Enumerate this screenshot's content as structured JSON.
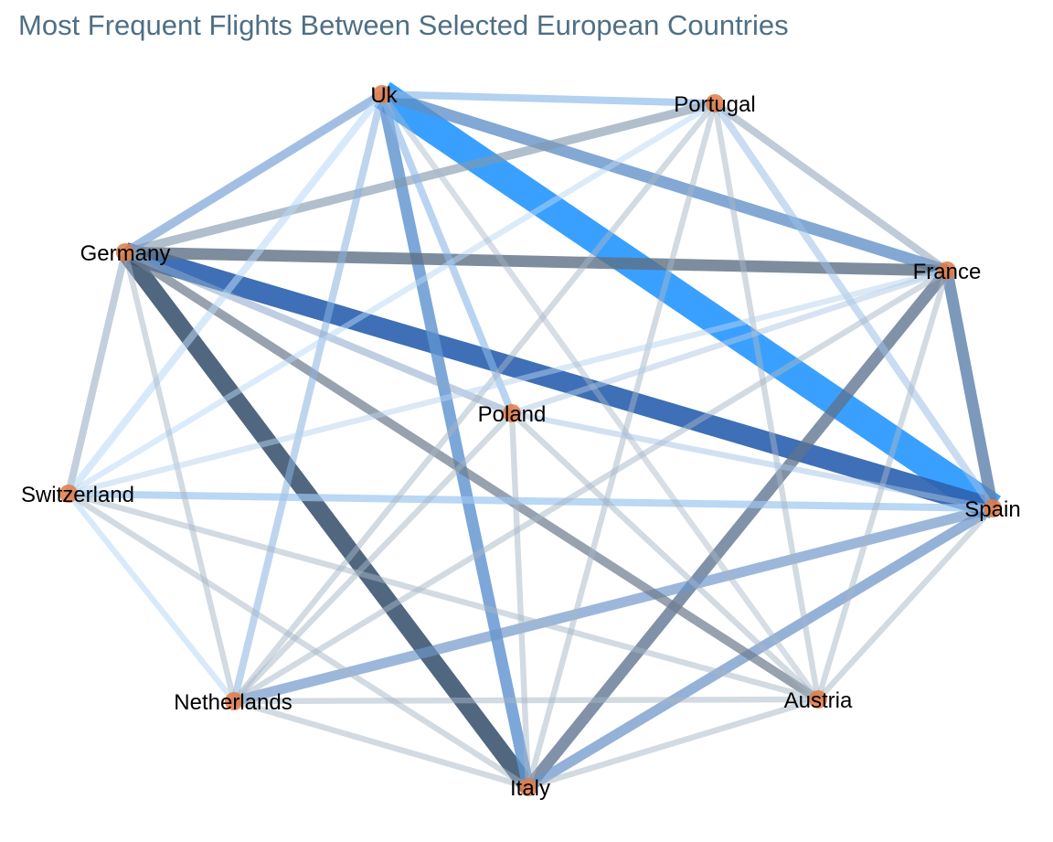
{
  "title": "Most Frequent Flights Between Selected European Countries",
  "colors": {
    "node": "#e07a45",
    "edge_strong": "#2f9bff",
    "edge_mid": "#2f63b0",
    "edge_dark": "#3e5671",
    "edge_light": "#b8d6f2"
  },
  "nodes": [
    {
      "id": "uk",
      "label": "Uk"
    },
    {
      "id": "portugal",
      "label": "Portugal"
    },
    {
      "id": "germany",
      "label": "Germany"
    },
    {
      "id": "france",
      "label": "France"
    },
    {
      "id": "poland",
      "label": "Poland"
    },
    {
      "id": "switzerland",
      "label": "Switzerland"
    },
    {
      "id": "spain",
      "label": "Spain"
    },
    {
      "id": "netherlands",
      "label": "Netherlands"
    },
    {
      "id": "austria",
      "label": "Austria"
    },
    {
      "id": "italy",
      "label": "Italy"
    }
  ],
  "edges": [
    {
      "from": "uk",
      "to": "spain",
      "weight": 10,
      "color": "#2f9bff",
      "opacity": 0.95
    },
    {
      "from": "germany",
      "to": "spain",
      "weight": 7,
      "color": "#2f63b0",
      "opacity": 0.92
    },
    {
      "from": "germany",
      "to": "italy",
      "weight": 6,
      "color": "#3e5671",
      "opacity": 0.9
    },
    {
      "from": "uk",
      "to": "italy",
      "weight": 4,
      "color": "#5f94cf",
      "opacity": 0.82
    },
    {
      "from": "uk",
      "to": "france",
      "weight": 4,
      "color": "#5f8fc7",
      "opacity": 0.78
    },
    {
      "from": "germany",
      "to": "france",
      "weight": 4,
      "color": "#5e7185",
      "opacity": 0.8
    },
    {
      "from": "france",
      "to": "spain",
      "weight": 4,
      "color": "#5f82ad",
      "opacity": 0.82
    },
    {
      "from": "france",
      "to": "italy",
      "weight": 4,
      "color": "#5e7390",
      "opacity": 0.78
    },
    {
      "from": "spain",
      "to": "italy",
      "weight": 3.5,
      "color": "#6b93c8",
      "opacity": 0.72
    },
    {
      "from": "spain",
      "to": "netherlands",
      "weight": 3.5,
      "color": "#6d95c8",
      "opacity": 0.68
    },
    {
      "from": "germany",
      "to": "austria",
      "weight": 3,
      "color": "#6f7e8f",
      "opacity": 0.72
    },
    {
      "from": "uk",
      "to": "germany",
      "weight": 3,
      "color": "#7ea6d8",
      "opacity": 0.72
    },
    {
      "from": "portugal",
      "to": "germany",
      "weight": 3,
      "color": "#8198ad",
      "opacity": 0.62
    },
    {
      "from": "uk",
      "to": "portugal",
      "weight": 2.5,
      "color": "#8ab8e8",
      "opacity": 0.65
    },
    {
      "from": "uk",
      "to": "poland",
      "weight": 2.5,
      "color": "#8ab8e8",
      "opacity": 0.6
    },
    {
      "from": "uk",
      "to": "netherlands",
      "weight": 2.5,
      "color": "#8ab3e0",
      "opacity": 0.55
    },
    {
      "from": "switzerland",
      "to": "spain",
      "weight": 2.5,
      "color": "#9cc6ef",
      "opacity": 0.7
    },
    {
      "from": "germany",
      "to": "poland",
      "weight": 2.5,
      "color": "#8aa8c8",
      "opacity": 0.55
    },
    {
      "from": "portugal",
      "to": "france",
      "weight": 2.5,
      "color": "#8aa0b4",
      "opacity": 0.55
    },
    {
      "from": "portugal",
      "to": "spain",
      "weight": 2.5,
      "color": "#9cc0e6",
      "opacity": 0.55
    },
    {
      "from": "germany",
      "to": "switzerland",
      "weight": 2.5,
      "color": "#92a8bf",
      "opacity": 0.55
    },
    {
      "from": "uk",
      "to": "switzerland",
      "weight": 2.5,
      "color": "#b8d8f5",
      "opacity": 0.55
    },
    {
      "from": "portugal",
      "to": "switzerland",
      "weight": 2,
      "color": "#b8d8f5",
      "opacity": 0.5
    },
    {
      "from": "portugal",
      "to": "italy",
      "weight": 2,
      "color": "#a6b6c6",
      "opacity": 0.5
    },
    {
      "from": "portugal",
      "to": "austria",
      "weight": 2,
      "color": "#a6b6c6",
      "opacity": 0.5
    },
    {
      "from": "portugal",
      "to": "netherlands",
      "weight": 2,
      "color": "#a6b6c6",
      "opacity": 0.5
    },
    {
      "from": "germany",
      "to": "netherlands",
      "weight": 2,
      "color": "#a6b6c6",
      "opacity": 0.5
    },
    {
      "from": "france",
      "to": "poland",
      "weight": 2,
      "color": "#b0c8e2",
      "opacity": 0.5
    },
    {
      "from": "france",
      "to": "switzerland",
      "weight": 2,
      "color": "#b8d3ee",
      "opacity": 0.5
    },
    {
      "from": "france",
      "to": "netherlands",
      "weight": 2,
      "color": "#a6b6c6",
      "opacity": 0.5
    },
    {
      "from": "france",
      "to": "austria",
      "weight": 2,
      "color": "#a6b6c6",
      "opacity": 0.5
    },
    {
      "from": "poland",
      "to": "spain",
      "weight": 2,
      "color": "#a6c4e6",
      "opacity": 0.5
    },
    {
      "from": "poland",
      "to": "italy",
      "weight": 2,
      "color": "#a6b6c6",
      "opacity": 0.5
    },
    {
      "from": "poland",
      "to": "austria",
      "weight": 2,
      "color": "#a6b6c6",
      "opacity": 0.5
    },
    {
      "from": "poland",
      "to": "netherlands",
      "weight": 2,
      "color": "#a6b6c6",
      "opacity": 0.5
    },
    {
      "from": "switzerland",
      "to": "netherlands",
      "weight": 2,
      "color": "#b8d8f5",
      "opacity": 0.55
    },
    {
      "from": "switzerland",
      "to": "italy",
      "weight": 2,
      "color": "#a6b6c6",
      "opacity": 0.5
    },
    {
      "from": "switzerland",
      "to": "austria",
      "weight": 2,
      "color": "#a6b6c6",
      "opacity": 0.5
    },
    {
      "from": "netherlands",
      "to": "austria",
      "weight": 2,
      "color": "#a6b6c6",
      "opacity": 0.5
    },
    {
      "from": "netherlands",
      "to": "italy",
      "weight": 2,
      "color": "#a6b6c6",
      "opacity": 0.5
    },
    {
      "from": "austria",
      "to": "italy",
      "weight": 2,
      "color": "#a6b6c6",
      "opacity": 0.5
    },
    {
      "from": "austria",
      "to": "spain",
      "weight": 2,
      "color": "#a6b6c6",
      "opacity": 0.5
    },
    {
      "from": "uk",
      "to": "austria",
      "weight": 2,
      "color": "#a6b6c6",
      "opacity": 0.45
    },
    {
      "from": "germany",
      "to": "germany",
      "weight": 0,
      "color": "#ffffff",
      "opacity": 0
    }
  ]
}
